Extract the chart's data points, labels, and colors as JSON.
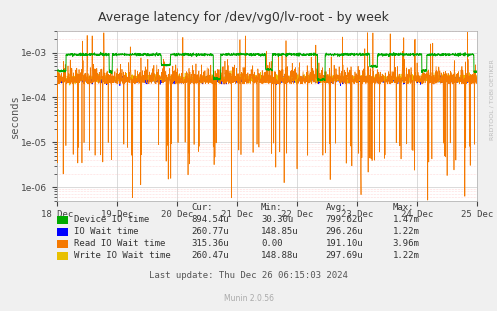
{
  "title": "Average latency for /dev/vg0/lv-root - by week",
  "ylabel": "seconds",
  "background_color": "#f0f0f0",
  "plot_bg_color": "#ffffff",
  "x_tick_labels": [
    "18 Dec",
    "19 Dec",
    "20 Dec",
    "21 Dec",
    "22 Dec",
    "23 Dec",
    "24 Dec",
    "25 Dec"
  ],
  "legend_items": [
    {
      "label": "Device IO time",
      "color": "#00aa00"
    },
    {
      "label": "IO Wait time",
      "color": "#0000ff"
    },
    {
      "label": "Read IO Wait time",
      "color": "#f57900"
    },
    {
      "label": "Write IO Wait time",
      "color": "#e8c000"
    }
  ],
  "legend_cur": [
    "894.54u",
    "260.77u",
    "315.36u",
    "260.47u"
  ],
  "legend_min": [
    "30.30u",
    "148.85u",
    "0.00",
    "148.88u"
  ],
  "legend_avg": [
    "799.62u",
    "296.26u",
    "191.10u",
    "297.69u"
  ],
  "legend_max": [
    "1.47m",
    "1.22m",
    "3.96m",
    "1.22m"
  ],
  "footer": "Last update: Thu Dec 26 06:15:03 2024",
  "munin_version": "Munin 2.0.56",
  "rrdtool_label": "RRDTOOL / TOBI OETIKER"
}
